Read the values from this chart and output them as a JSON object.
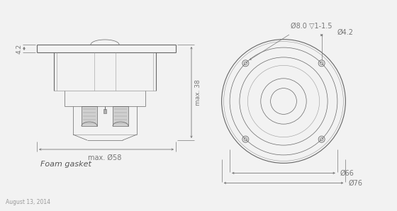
{
  "bg_color": "#f2f2f2",
  "line_color": "#999999",
  "dark_line": "#666666",
  "text_color": "#555555",
  "dim_color": "#777777",
  "title_date": "August 13, 2014",
  "label_foam": "Foam gasket",
  "dim_42_side": "4.2",
  "dim_38": "max. 38",
  "dim_58": "max. Ø58",
  "dim_42_top": "Ø4.2",
  "dim_80": "Ø8.0 ▽1-1.5",
  "dim_66": "Ø66",
  "dim_76": "Ø76"
}
